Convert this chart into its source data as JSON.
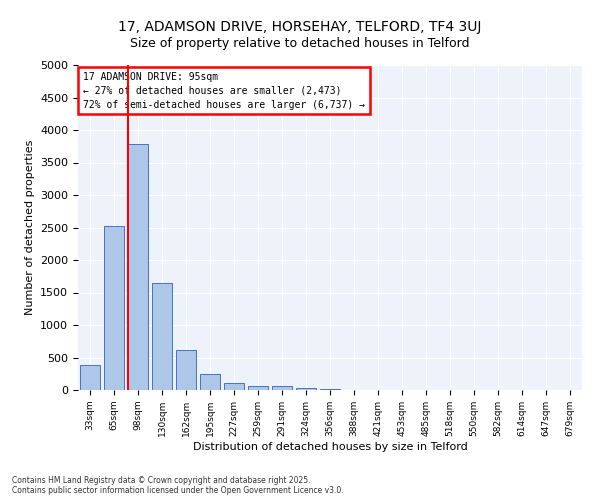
{
  "title_line1": "17, ADAMSON DRIVE, HORSEHAY, TELFORD, TF4 3UJ",
  "title_line2": "Size of property relative to detached houses in Telford",
  "xlabel": "Distribution of detached houses by size in Telford",
  "ylabel": "Number of detached properties",
  "bin_labels": [
    "33sqm",
    "65sqm",
    "98sqm",
    "130sqm",
    "162sqm",
    "195sqm",
    "227sqm",
    "259sqm",
    "291sqm",
    "324sqm",
    "356sqm",
    "388sqm",
    "421sqm",
    "453sqm",
    "485sqm",
    "518sqm",
    "550sqm",
    "582sqm",
    "614sqm",
    "647sqm",
    "679sqm"
  ],
  "bar_values": [
    380,
    2530,
    3780,
    1650,
    620,
    240,
    110,
    60,
    55,
    30,
    12,
    5,
    4,
    3,
    2,
    2,
    1,
    1,
    1,
    1,
    1
  ],
  "bar_color": "#aec6e8",
  "bar_edge_color": "#4472c4",
  "vline_color": "red",
  "annotation_title": "17 ADAMSON DRIVE: 95sqm",
  "annotation_line1": "← 27% of detached houses are smaller (2,473)",
  "annotation_line2": "72% of semi-detached houses are larger (6,737) →",
  "ylim": [
    0,
    5000
  ],
  "yticks": [
    0,
    500,
    1000,
    1500,
    2000,
    2500,
    3000,
    3500,
    4000,
    4500,
    5000
  ],
  "bg_color": "#eef2fb",
  "grid_color": "white",
  "footer_line1": "Contains HM Land Registry data © Crown copyright and database right 2025.",
  "footer_line2": "Contains public sector information licensed under the Open Government Licence v3.0."
}
